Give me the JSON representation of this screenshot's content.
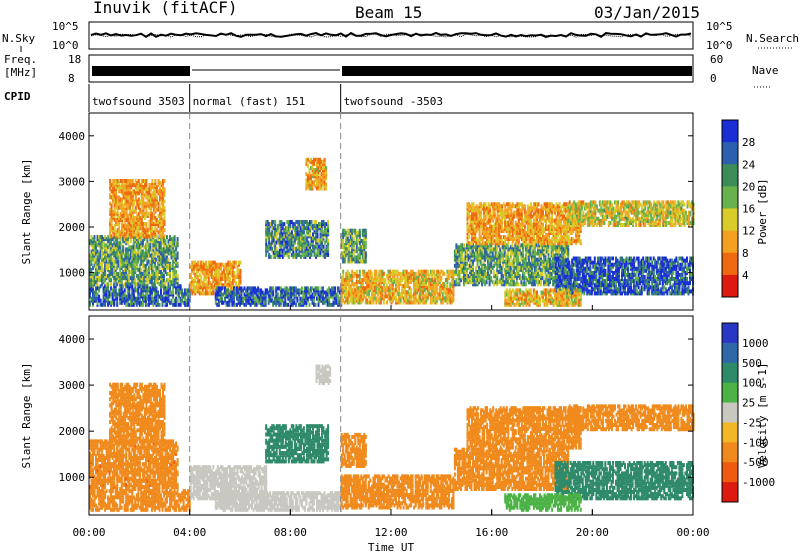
{
  "header": {
    "station": "Inuvik (fitACF)",
    "beam": "Beam 15",
    "date": "03/Jan/2015"
  },
  "panel_labels": {
    "nsky": "N.Sky",
    "nsearch": "N.Search",
    "freq_line1": "Freq.",
    "freq_line2": "[MHz]",
    "nave": "Nave",
    "cpid": "CPID",
    "nsky_top": "10^5",
    "nsky_bottom": "10^0",
    "nsearch_top": "10^5",
    "nsearch_bottom": "10^0",
    "freq_top": "18",
    "freq_bottom": "8",
    "nave_top": "60",
    "nave_bottom": "0"
  },
  "cpid_segments": [
    {
      "start_hr": 0,
      "end_hr": 4,
      "label": "twofsound 3503"
    },
    {
      "start_hr": 4,
      "end_hr": 10,
      "label": "normal (fast) 151"
    },
    {
      "start_hr": 10,
      "end_hr": 24,
      "label": "twofsound -3503"
    }
  ],
  "time_axis": {
    "xlabel": "Time UT",
    "ticks": [
      "00:00",
      "04:00",
      "08:00",
      "12:00",
      "16:00",
      "20:00",
      "00:00"
    ]
  },
  "chart_data": [
    {
      "type": "heatmap",
      "title": "",
      "xlabel": "",
      "ylabel": "Slant Range [km]",
      "xlim": [
        0,
        24
      ],
      "ylim": [
        180,
        4500
      ],
      "yticks": [
        1000,
        2000,
        3000,
        4000
      ],
      "colorbar": {
        "label": "Power [dB]",
        "ticks": [
          "4",
          "8",
          "12",
          "16",
          "20",
          "24",
          "28"
        ],
        "colors": [
          "#1a2ed6",
          "#2c5fae",
          "#3c8c5a",
          "#67b24c",
          "#d8cc2a",
          "#f4a020",
          "#ee6a10",
          "#dd1a10"
        ]
      },
      "regions": [
        {
          "t0": 0.0,
          "t1": 4.0,
          "r0": 250,
          "r1": 700,
          "value": 26
        },
        {
          "t0": 0.0,
          "t1": 3.5,
          "r0": 700,
          "r1": 1750,
          "value": 20
        },
        {
          "t0": 0.8,
          "t1": 3.0,
          "r0": 1750,
          "r1": 3000,
          "value": 10
        },
        {
          "t0": 4.0,
          "t1": 6.0,
          "r0": 500,
          "r1": 1200,
          "value": 10
        },
        {
          "t0": 5.0,
          "t1": 10.0,
          "r0": 250,
          "r1": 650,
          "value": 26
        },
        {
          "t0": 7.0,
          "t1": 9.5,
          "r0": 1300,
          "r1": 2100,
          "value": 22
        },
        {
          "t0": 8.6,
          "t1": 9.4,
          "r0": 2800,
          "r1": 3450,
          "value": 11
        },
        {
          "t0": 10.0,
          "t1": 14.5,
          "r0": 300,
          "r1": 1000,
          "value": 12
        },
        {
          "t0": 10.0,
          "t1": 11.0,
          "r0": 1200,
          "r1": 1900,
          "value": 20
        },
        {
          "t0": 14.5,
          "t1": 19.0,
          "r0": 700,
          "r1": 1600,
          "value": 20
        },
        {
          "t0": 15.0,
          "t1": 19.5,
          "r0": 1600,
          "r1": 2500,
          "value": 10
        },
        {
          "t0": 18.5,
          "t1": 24.0,
          "r0": 500,
          "r1": 1300,
          "value": 28
        },
        {
          "t0": 19.0,
          "t1": 24.0,
          "r0": 2000,
          "r1": 2500,
          "value": 14
        },
        {
          "t0": 16.5,
          "t1": 19.5,
          "r0": 250,
          "r1": 600,
          "value": 12
        }
      ]
    },
    {
      "type": "heatmap",
      "title": "",
      "xlabel": "Time UT",
      "ylabel": "Slant Range [km]",
      "xlim": [
        0,
        24
      ],
      "ylim": [
        180,
        4500
      ],
      "yticks": [
        1000,
        2000,
        3000,
        4000
      ],
      "colorbar": {
        "label": "Velocity [m s-1]",
        "ticks": [
          "1000",
          "500",
          "100",
          "25",
          "-25",
          "-100",
          "-500",
          "-1000"
        ],
        "colors": [
          "#2838c4",
          "#2e68a8",
          "#2f8a6a",
          "#4cb246",
          "#c8c8c0",
          "#f2b626",
          "#f08a1c",
          "#ee5a10",
          "#dd1a10"
        ]
      },
      "regions": [
        {
          "t0": 0.0,
          "t1": 4.0,
          "r0": 250,
          "r1": 700,
          "value": -200
        },
        {
          "t0": 0.0,
          "t1": 3.5,
          "r0": 700,
          "r1": 1750,
          "value": -400
        },
        {
          "t0": 0.8,
          "t1": 3.0,
          "r0": 1750,
          "r1": 3000,
          "value": -150
        },
        {
          "t0": 4.0,
          "t1": 7.0,
          "r0": 500,
          "r1": 1200,
          "value": 0
        },
        {
          "t0": 5.0,
          "t1": 10.0,
          "r0": 250,
          "r1": 650,
          "value": 10
        },
        {
          "t0": 7.0,
          "t1": 9.5,
          "r0": 1300,
          "r1": 2100,
          "value": 300
        },
        {
          "t0": 9.0,
          "t1": 9.6,
          "r0": 3000,
          "r1": 3400,
          "value": 0
        },
        {
          "t0": 10.0,
          "t1": 14.5,
          "r0": 300,
          "r1": 1000,
          "value": -300
        },
        {
          "t0": 10.0,
          "t1": 11.0,
          "r0": 1200,
          "r1": 1900,
          "value": -400
        },
        {
          "t0": 14.5,
          "t1": 19.0,
          "r0": 700,
          "r1": 1600,
          "value": -300
        },
        {
          "t0": 15.0,
          "t1": 19.5,
          "r0": 1600,
          "r1": 2500,
          "value": -200
        },
        {
          "t0": 18.5,
          "t1": 24.0,
          "r0": 500,
          "r1": 1300,
          "value": 200
        },
        {
          "t0": 19.0,
          "t1": 24.0,
          "r0": 2000,
          "r1": 2500,
          "value": -200
        },
        {
          "t0": 16.5,
          "t1": 19.5,
          "r0": 250,
          "r1": 600,
          "value": 50
        }
      ]
    }
  ]
}
